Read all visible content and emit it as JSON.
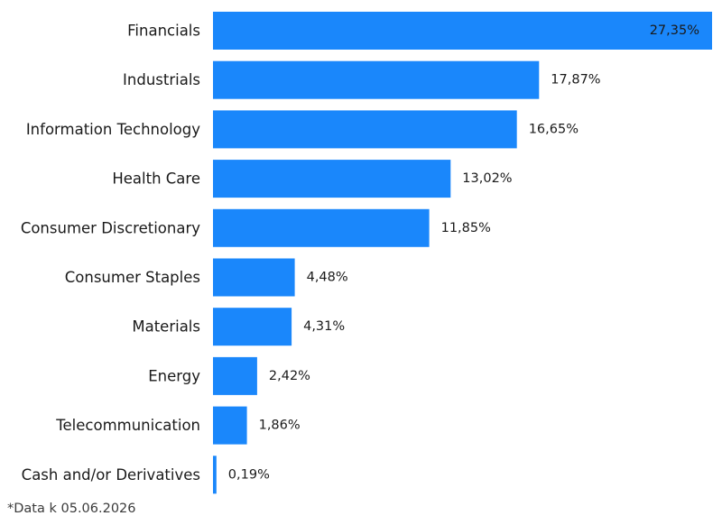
{
  "chart_data": {
    "type": "bar",
    "orientation": "horizontal",
    "categories": [
      "Financials",
      "Industrials",
      "Information Technology",
      "Health Care",
      "Consumer Discretionary",
      "Consumer Staples",
      "Materials",
      "Energy",
      "Telecommunication",
      "Cash and/or Derivatives"
    ],
    "values": [
      27.35,
      17.87,
      16.65,
      13.02,
      11.85,
      4.48,
      4.31,
      2.42,
      1.86,
      0.19
    ],
    "value_labels": [
      "27,35%",
      "17,87%",
      "16,65%",
      "13,02%",
      "11,85%",
      "4,48%",
      "4,31%",
      "2,42%",
      "1,86%",
      "0,19%"
    ],
    "title": "",
    "xlabel": "",
    "ylabel": "",
    "xlim": [
      0,
      27.35
    ],
    "grid": false,
    "legend": "none",
    "bar_color": "#1a87fb"
  },
  "footnote": "*Data k 05.06.2026"
}
